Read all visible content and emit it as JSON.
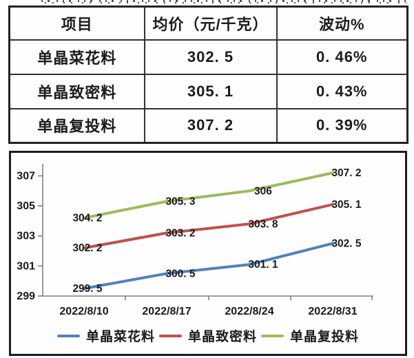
{
  "page": {
    "background": "#ffffff",
    "text_color": "#1a1a1a"
  },
  "table": {
    "columns": [
      "项目",
      "均价（元/千克）",
      "波动%"
    ],
    "rows": [
      {
        "item": "单晶菜花料",
        "avg_price": "302. 5",
        "fluctuation": "0. 46%"
      },
      {
        "item": "单晶致密料",
        "avg_price": "305. 1",
        "fluctuation": "0. 43%"
      },
      {
        "item": "单晶复投料",
        "avg_price": "307. 2",
        "fluctuation": "0. 39%"
      }
    ]
  },
  "chart_data": {
    "type": "line",
    "x": [
      "2022/8/10",
      "2022/8/17",
      "2022/8/24",
      "2022/8/31"
    ],
    "series": [
      {
        "name": "单晶菜花料",
        "color": "#4F81BD",
        "values": [
          299.5,
          300.5,
          301.1,
          302.5
        ],
        "labels": [
          "299. 5",
          "300. 5",
          "301. 1",
          "302. 5"
        ]
      },
      {
        "name": "单晶致密料",
        "color": "#C0504D",
        "values": [
          302.2,
          303.2,
          303.8,
          305.1
        ],
        "labels": [
          "302. 2",
          "303. 2",
          "303. 8",
          "305. 1"
        ]
      },
      {
        "name": "单晶复投料",
        "color": "#9BBB59",
        "values": [
          304.2,
          305.3,
          306,
          307.2
        ],
        "labels": [
          "304. 2",
          "305. 3",
          "306",
          "307. 2"
        ]
      }
    ],
    "ylim": [
      299,
      307.8
    ],
    "yticks": [
      299,
      301,
      303,
      305,
      307
    ],
    "xlabel": "",
    "ylabel": "",
    "title": "",
    "grid": false,
    "legend_position": "bottom",
    "axis_color": "#808080",
    "label_color": "#1a1a1a",
    "line_width": 4
  }
}
